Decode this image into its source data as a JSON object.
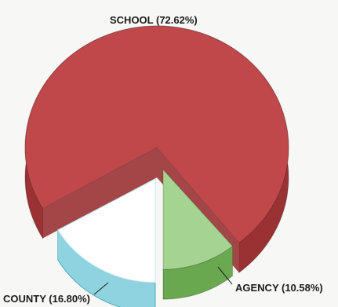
{
  "chart_data": {
    "type": "pie",
    "style": "3d-exploded",
    "slices": [
      {
        "label": "SCHOOL",
        "value": 72.62,
        "display": "SCHOOL (72.62%)",
        "top_color": "#c0474a",
        "side_color": "#9a3234",
        "exploded": false
      },
      {
        "label": "AGENCY",
        "value": 10.58,
        "display": "AGENCY (10.58%)",
        "top_color": "#a5d391",
        "side_color": "#6aa84f",
        "exploded": true
      },
      {
        "label": "COUNTY",
        "value": 16.8,
        "display": "COUNTY (16.80%)",
        "top_color": "#ffffff",
        "side_color": "#8fd3e0",
        "exploded": true
      }
    ]
  }
}
